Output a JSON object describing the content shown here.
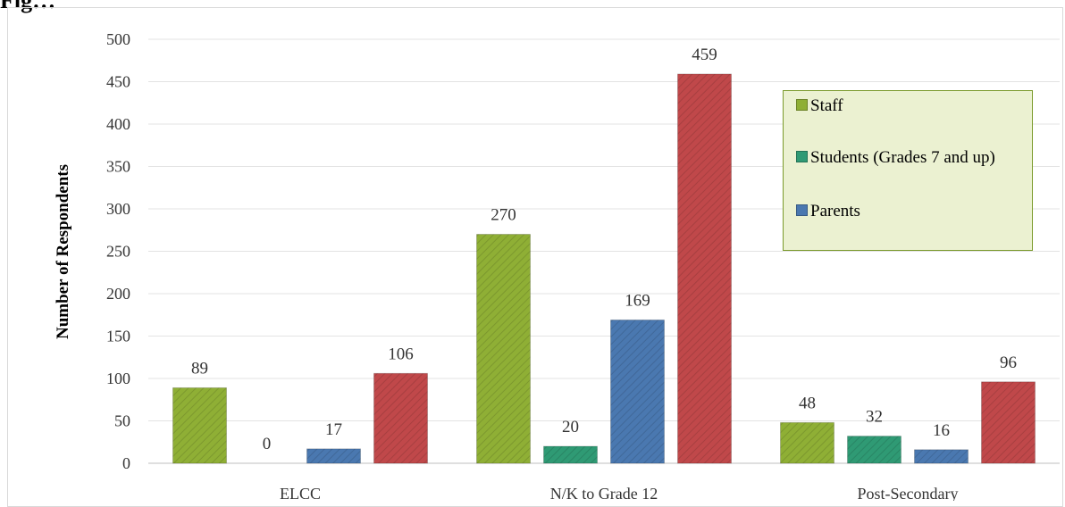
{
  "title": "Fig…",
  "colors": {
    "staff": "#8faf35",
    "students": "#2f9a74",
    "parents": "#4a78b0",
    "fourth": "#c0484a",
    "legend_bg": "#ebf1d1",
    "legend_border": "#7a9a2b"
  },
  "chart_data": {
    "type": "bar",
    "title": "Fig…",
    "xlabel": "",
    "ylabel": "Number of Respondents",
    "ylim": [
      0,
      500
    ],
    "yticks": [
      0,
      50,
      100,
      150,
      200,
      250,
      300,
      350,
      400,
      450,
      500
    ],
    "grid": true,
    "legend_position": "right",
    "categories": [
      "ELCC",
      "N/K to Grade 12",
      "Post-Secondary"
    ],
    "series": [
      {
        "name": "Staff",
        "values": [
          89,
          270,
          48
        ]
      },
      {
        "name": "Students (Grades 7 and up)",
        "values": [
          0,
          20,
          32
        ]
      },
      {
        "name": "Parents",
        "values": [
          17,
          169,
          16
        ]
      },
      {
        "values": [
          106,
          459,
          96
        ]
      }
    ]
  }
}
